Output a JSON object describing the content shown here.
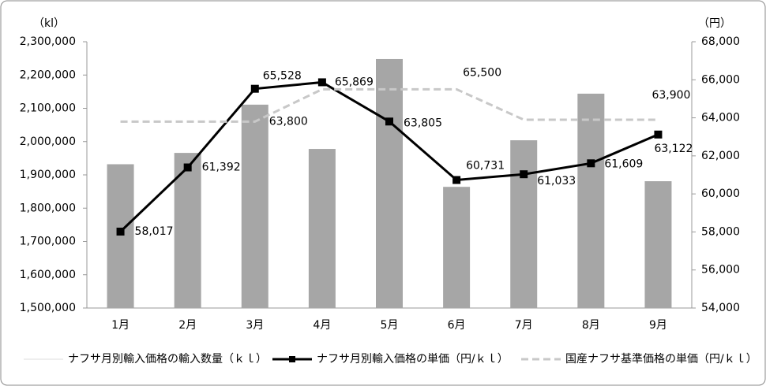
{
  "chart_data": {
    "type": "bar-line",
    "y_unit": "（kl）",
    "y2_unit": "（円）",
    "categories": [
      "1月",
      "2月",
      "3月",
      "4月",
      "5月",
      "6月",
      "7月",
      "8月",
      "9月"
    ],
    "ylim": [
      1500000,
      2300000
    ],
    "yticks": [
      {
        "value": 1500000,
        "label": "1,500,000"
      },
      {
        "value": 1600000,
        "label": "1,600,000"
      },
      {
        "value": 1700000,
        "label": "1,700,000"
      },
      {
        "value": 1800000,
        "label": "1,800,000"
      },
      {
        "value": 1900000,
        "label": "1,900,000"
      },
      {
        "value": 2000000,
        "label": "2,000,000"
      },
      {
        "value": 2100000,
        "label": "2,100,000"
      },
      {
        "value": 2200000,
        "label": "2,200,000"
      },
      {
        "value": 2300000,
        "label": "2,300,000"
      }
    ],
    "y2lim": [
      54000,
      68000
    ],
    "y2ticks": [
      {
        "value": 54000,
        "label": "54,000"
      },
      {
        "value": 56000,
        "label": "56,000"
      },
      {
        "value": 58000,
        "label": "58,000"
      },
      {
        "value": 60000,
        "label": "60,000"
      },
      {
        "value": 62000,
        "label": "62,000"
      },
      {
        "value": 64000,
        "label": "64,000"
      },
      {
        "value": 66000,
        "label": "66,000"
      },
      {
        "value": 68000,
        "label": "68,000"
      }
    ],
    "series": [
      {
        "name": "ナフサ月別輸入価格の輸入数量（ｋｌ）",
        "type": "bar",
        "color": "#a6a6a6",
        "values": [
          1932000,
          1966000,
          2111000,
          1978000,
          2248000,
          1864000,
          2004000,
          2144000,
          1881000
        ]
      },
      {
        "name": "ナフサ月別輸入価格の単価（円/ｋｌ）",
        "type": "line",
        "axis": "y2",
        "color": "#000000",
        "marker": "square",
        "values": [
          58017,
          61392,
          65528,
          65869,
          63805,
          60731,
          61033,
          61609,
          63122
        ],
        "value_labels": [
          "58,017",
          "61,392",
          "65,528",
          "65,869",
          "63,805",
          "60,731",
          "61,033",
          "61,609",
          "63,122"
        ]
      },
      {
        "name": "国産ナフサ基準価格の単価（円/ｋｌ）",
        "type": "line",
        "axis": "y2",
        "color": "#c8c8c8",
        "dashed": true,
        "values": [
          63800,
          63800,
          63800,
          65500,
          65500,
          65500,
          63900,
          63900,
          63900
        ],
        "value_labels": [
          null,
          null,
          "63,800",
          null,
          null,
          "65,500",
          null,
          null,
          "63,900"
        ]
      }
    ]
  }
}
